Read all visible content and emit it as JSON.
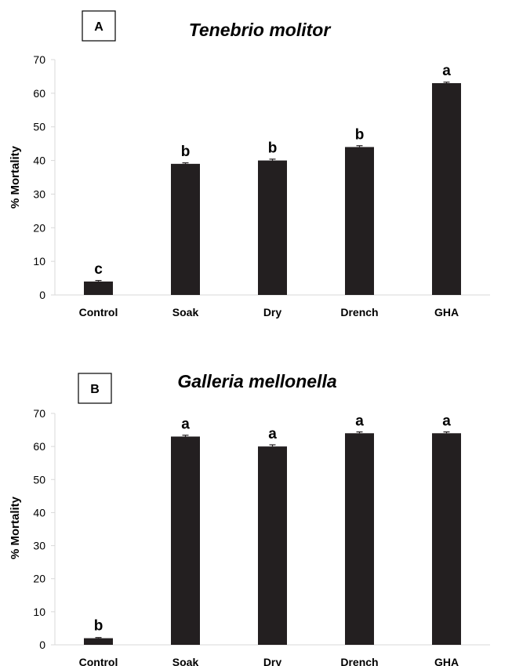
{
  "chart_data": [
    {
      "type": "bar",
      "panel_label": "A",
      "title": "Tenebrio molitor",
      "ylabel": "% Mortality",
      "xlabel": "",
      "ylim": [
        0,
        70
      ],
      "yticks": [
        0,
        10,
        20,
        30,
        40,
        50,
        60,
        70
      ],
      "grid": false,
      "categories": [
        "Control",
        "Soak",
        "Dry",
        "Drench",
        "GHA"
      ],
      "values": [
        4,
        39,
        40,
        44,
        63
      ],
      "errors": [
        0.3,
        0.3,
        0.4,
        0.4,
        0.3
      ],
      "significance_letters": [
        "c",
        "b",
        "b",
        "b",
        "a"
      ]
    },
    {
      "type": "bar",
      "panel_label": "B",
      "title": "Galleria mellonella",
      "ylabel": "% Mortality",
      "xlabel": "",
      "ylim": [
        0,
        70
      ],
      "yticks": [
        0,
        10,
        20,
        30,
        40,
        50,
        60,
        70
      ],
      "grid": false,
      "categories": [
        "Control",
        "Soak",
        "Dry",
        "Drench",
        "GHA"
      ],
      "values": [
        2,
        63,
        60,
        64,
        64
      ],
      "errors": [
        0.2,
        0.4,
        0.5,
        0.4,
        0.4
      ],
      "significance_letters": [
        "b",
        "a",
        "a",
        "a",
        "a"
      ]
    }
  ],
  "colors": {
    "bar": "#231f20",
    "axis": "#d9d9d9"
  }
}
